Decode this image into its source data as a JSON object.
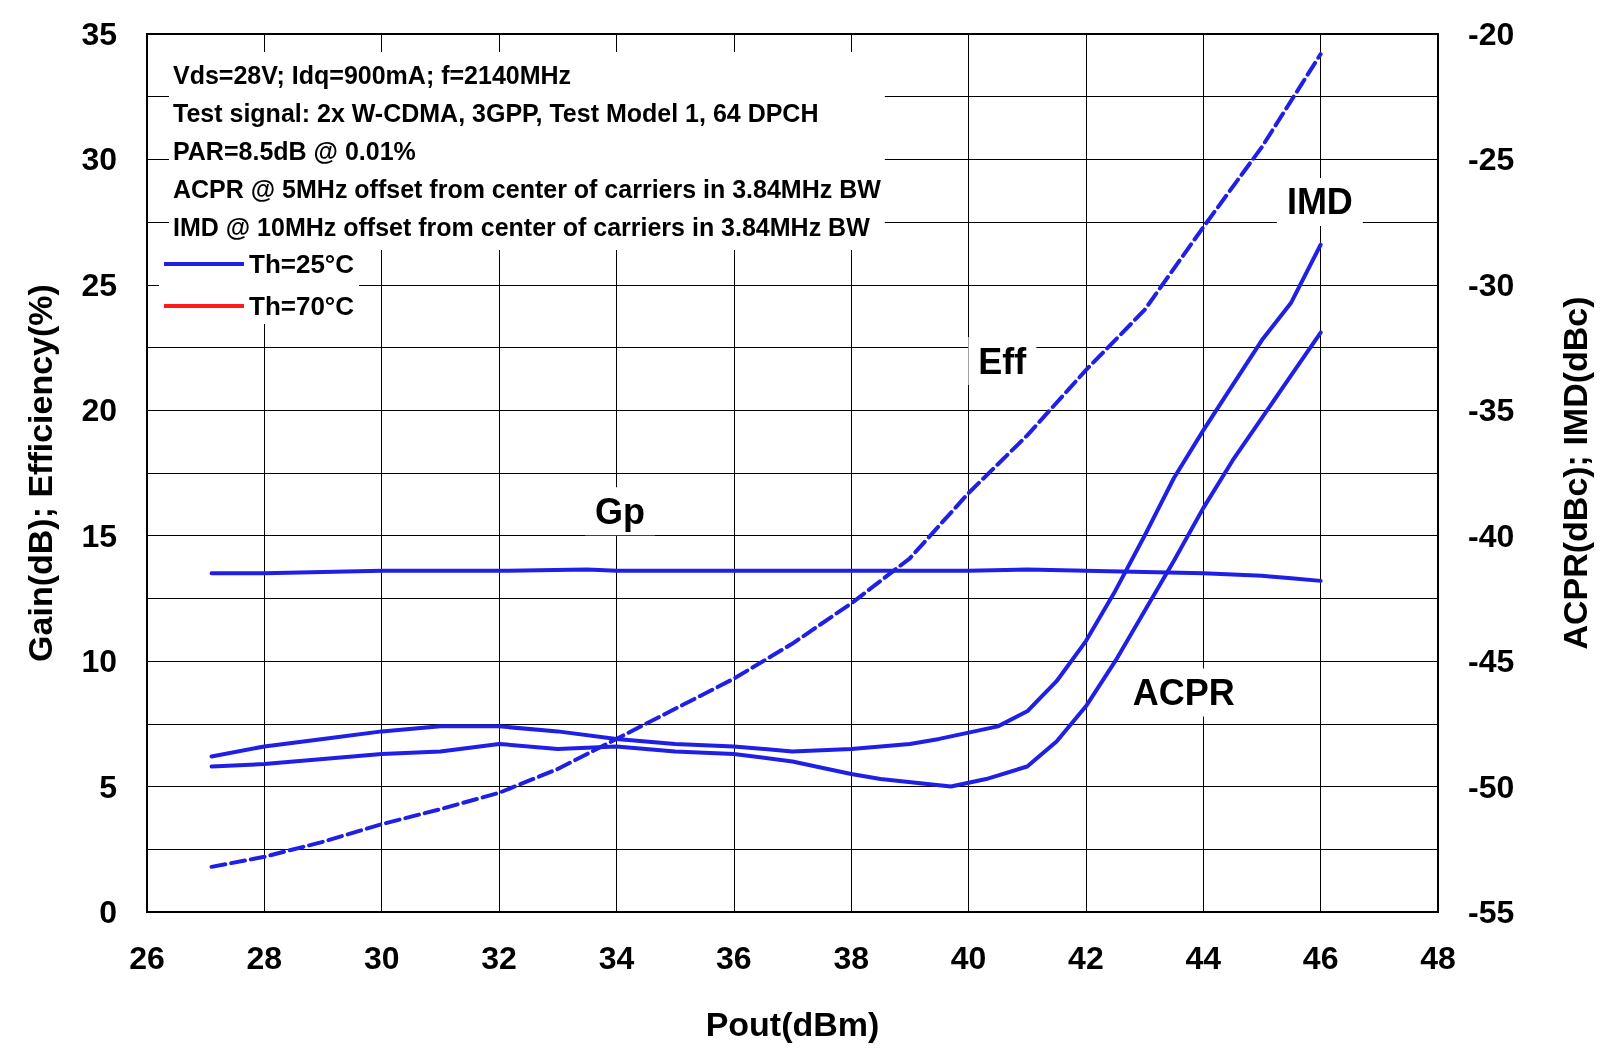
{
  "chart_data": {
    "type": "line",
    "xlabel": "Pout(dBm)",
    "ylabel": "Gain(dB); Efficiency(%)",
    "y2label": "ACPR(dBc); IMD(dBc)",
    "xlim": [
      26,
      48
    ],
    "xticks": [
      26,
      28,
      30,
      32,
      34,
      36,
      38,
      40,
      42,
      44,
      46,
      48
    ],
    "ylim": [
      0,
      35
    ],
    "yticks": [
      0,
      {
        "value": 2.5,
        "label": null
      },
      5,
      {
        "value": 7.5,
        "label": null
      },
      10,
      {
        "value": 12.5,
        "label": null
      },
      15,
      {
        "value": 17.5,
        "label": null
      },
      20,
      {
        "value": 22.5,
        "label": null
      },
      25,
      {
        "value": 27.5,
        "label": null
      },
      30,
      {
        "value": 32.5,
        "label": null
      },
      35
    ],
    "y2lim": [
      -55,
      -20
    ],
    "y2ticks": [
      -55,
      -50,
      -45,
      -40,
      -35,
      -30,
      -25,
      -20
    ],
    "grid": true,
    "legend": "top left",
    "marker": "none",
    "annotations": [
      "Vds=28V; Idq=900mA; f=2140MHz",
      "Test signal: 2x W-CDMA, 3GPP, Test Model 1, 64 DPCH",
      "PAR=8.5dB @ 0.01%",
      "ACPR @ 5MHz offset from center of carriers in 3.84MHz BW",
      "IMD @ 10MHz offset from center of carriers in 3.84MHz BW",
      "Gp",
      "Eff",
      "IMD",
      "ACPR"
    ],
    "series": [
      {
        "name": "Th=25°C",
        "color": "#1f1fe6",
        "x": [
          27.1,
          28,
          30,
          32,
          33.5,
          34,
          36,
          38,
          40,
          41,
          42,
          43,
          44,
          45,
          45.5,
          46
        ],
        "values": [
          13.5,
          13.5,
          13.6,
          13.6,
          13.65,
          13.6,
          13.6,
          13.6,
          13.6,
          13.65,
          13.6,
          13.55,
          13.5,
          13.4,
          13.3,
          13.2
        ]
      },
      {
        "color": "#1f1fe6",
        "line_style": "dashed",
        "x": [
          27.1,
          28,
          29,
          30,
          31,
          32,
          33,
          34,
          35,
          36,
          37,
          38,
          39,
          40,
          41,
          42,
          43,
          44,
          45,
          46
        ],
        "values": [
          1.8,
          2.2,
          2.8,
          3.5,
          4.1,
          4.75,
          5.7,
          6.9,
          8.1,
          9.3,
          10.7,
          12.3,
          14.1,
          16.7,
          19,
          21.6,
          24,
          27.3,
          30.5,
          34.2
        ]
      },
      {
        "color": "#1f1fe6",
        "axis": "y2",
        "x": [
          27.1,
          28,
          29,
          30,
          31,
          32,
          33,
          34,
          35,
          36,
          37,
          38,
          39,
          39.5,
          40.5,
          41,
          41.5,
          42,
          42.5,
          43,
          43.5,
          44,
          44.5,
          45,
          45.5,
          46
        ],
        "values": [
          -48.8,
          -48.4,
          -48.1,
          -47.8,
          -47.6,
          -47.6,
          -47.8,
          -48.1,
          -48.3,
          -48.4,
          -48.6,
          -48.5,
          -48.3,
          -48.1,
          -47.6,
          -47,
          -45.8,
          -44.2,
          -42.2,
          -40,
          -37.7,
          -35.8,
          -34,
          -32.2,
          -30.7,
          -28.4
        ]
      },
      {
        "color": "#1f1fe6",
        "axis": "y2",
        "x": [
          27.1,
          28,
          29,
          30,
          31,
          32,
          33,
          34,
          35,
          36,
          37,
          38,
          38.5,
          39.7,
          40.3,
          41,
          41.5,
          42,
          42.5,
          43,
          43.5,
          44,
          44.5,
          45,
          45.5,
          46
        ],
        "values": [
          -49.2,
          -49.1,
          -48.9,
          -48.7,
          -48.6,
          -48.3,
          -48.5,
          -48.4,
          -48.6,
          -48.7,
          -49,
          -49.5,
          -49.7,
          -50,
          -49.7,
          -49.2,
          -48.2,
          -46.8,
          -45,
          -43,
          -41,
          -38.9,
          -37,
          -35.3,
          -33.6,
          -31.9
        ]
      },
      {
        "name": "Th=70°C",
        "color": "#ff1a1a"
      }
    ]
  }
}
